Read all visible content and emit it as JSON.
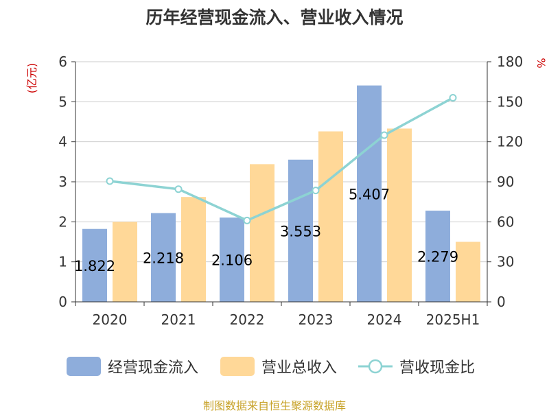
{
  "title": "历年经营现金流入、营业收入情况",
  "source": "制图数据来自恒生聚源数据库",
  "chart_data": {
    "type": "bar",
    "categories": [
      "2020",
      "2021",
      "2022",
      "2023",
      "2024",
      "2025H1"
    ],
    "y_left": {
      "label": "(亿元)",
      "range": [
        0,
        6
      ],
      "ticks": [
        "0",
        "1",
        "2",
        "3",
        "4",
        "5",
        "6"
      ]
    },
    "y_right": {
      "label": "%",
      "range": [
        0,
        180
      ],
      "ticks": [
        "0",
        "30",
        "60",
        "90",
        "120",
        "150",
        "180"
      ]
    },
    "grid": true,
    "legend_position": "bottom",
    "series": [
      {
        "name": "经营现金流入",
        "kind": "bar",
        "axis": "left",
        "color": "#8eaddb",
        "values": [
          1.822,
          2.218,
          2.106,
          3.553,
          5.407,
          2.279
        ],
        "labels": [
          "1.822",
          "2.218",
          "2.106",
          "3.553",
          "5.407",
          "2.279"
        ]
      },
      {
        "name": "营业总收入",
        "kind": "bar",
        "axis": "left",
        "color": "#ffd898",
        "values": [
          2.0,
          2.62,
          3.44,
          4.26,
          4.33,
          1.5
        ]
      },
      {
        "name": "营收现金比",
        "kind": "line",
        "axis": "right",
        "color": "#8dd3d3",
        "values": [
          90.5,
          84.5,
          61.0,
          83.5,
          125.0,
          153.0
        ]
      }
    ]
  },
  "colors": {
    "axis_label": "#cc0000",
    "text": "#333333",
    "grid": "#cccccc",
    "source": "#c8a32a"
  }
}
